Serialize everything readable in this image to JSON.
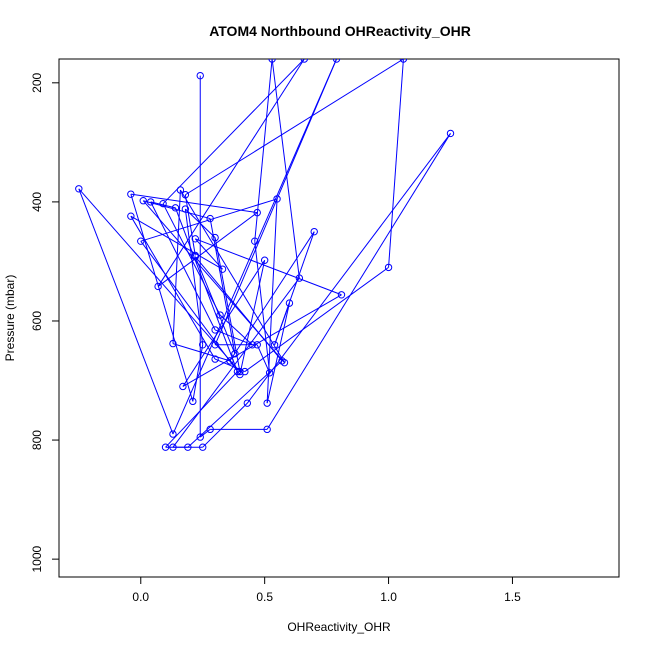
{
  "chart_data": {
    "type": "line",
    "title": "ATOM4 Northbound OHReactivity_OHR",
    "xlabel": "OHReactivity_OHR",
    "ylabel": "Pressure (mbar)",
    "xlim": [
      -0.33,
      1.93
    ],
    "ylim": [
      1030,
      160
    ],
    "y_axis_reversed": true,
    "x_ticks": [
      0.0,
      0.5,
      1.0,
      1.5
    ],
    "x_tick_labels": [
      "0.0",
      "0.5",
      "1.0",
      "1.5"
    ],
    "y_ticks": [
      200,
      400,
      600,
      800,
      1000
    ],
    "y_tick_labels": [
      "200",
      "400",
      "600",
      "800",
      "1000"
    ],
    "grid": false,
    "legend": "none",
    "line_color": "#0000ff",
    "marker": "open-circle",
    "series": [
      {
        "points": [
          [
            0.24,
            188
          ],
          [
            0.24,
            795
          ],
          [
            0.28,
            782
          ],
          [
            0.51,
            782
          ],
          [
            1.25,
            285
          ],
          [
            0.43,
            738
          ],
          [
            0.25,
            812
          ],
          [
            0.1,
            812
          ],
          [
            0.39,
            685
          ],
          [
            0.14,
            410
          ],
          [
            0.04,
            400
          ],
          [
            0.3,
            615
          ],
          [
            0.45,
            640
          ],
          [
            0.32,
            590
          ],
          [
            0.09,
            403
          ],
          [
            0.66,
            160
          ],
          [
            0.07,
            542
          ],
          [
            0.47,
            418
          ],
          [
            -0.04,
            387
          ],
          [
            0.21,
            735
          ],
          [
            0.25,
            640
          ],
          [
            0.18,
            412
          ],
          [
            0.3,
            460
          ],
          [
            0.4,
            685
          ],
          [
            -0.25,
            378
          ],
          [
            0.13,
            790
          ],
          [
            0.79,
            160
          ],
          [
            0.3,
            640
          ],
          [
            0.47,
            640
          ],
          [
            0.52,
            687
          ],
          [
            0.46,
            466
          ],
          [
            0.53,
            160
          ],
          [
            0.64,
            528
          ],
          [
            0.13,
            812
          ],
          [
            0.19,
            812
          ],
          [
            0.57,
            667
          ],
          [
            0.22,
            492
          ],
          [
            0.38,
            655
          ],
          [
            0.28,
            428
          ],
          [
            0.01,
            398
          ],
          [
            0.58,
            670
          ],
          [
            0.16,
            380
          ],
          [
            0.13,
            638
          ],
          [
            0.36,
            667
          ],
          [
            0.7,
            450
          ],
          [
            0.54,
            640
          ],
          [
            0.6,
            570
          ],
          [
            0.51,
            738
          ],
          [
            0.55,
            395
          ],
          [
            0.0,
            466
          ],
          [
            0.4,
            690
          ],
          [
            0.5,
            498
          ],
          [
            0.17,
            710
          ],
          [
            0.81,
            556
          ],
          [
            0.22,
            462
          ],
          [
            0.33,
            513
          ],
          [
            -0.04,
            424
          ],
          [
            0.3,
            664
          ],
          [
            0.42,
            685
          ],
          [
            1.0,
            510
          ],
          [
            1.06,
            160
          ],
          [
            0.18,
            388
          ],
          [
            0.22,
            490
          ]
        ]
      }
    ]
  }
}
